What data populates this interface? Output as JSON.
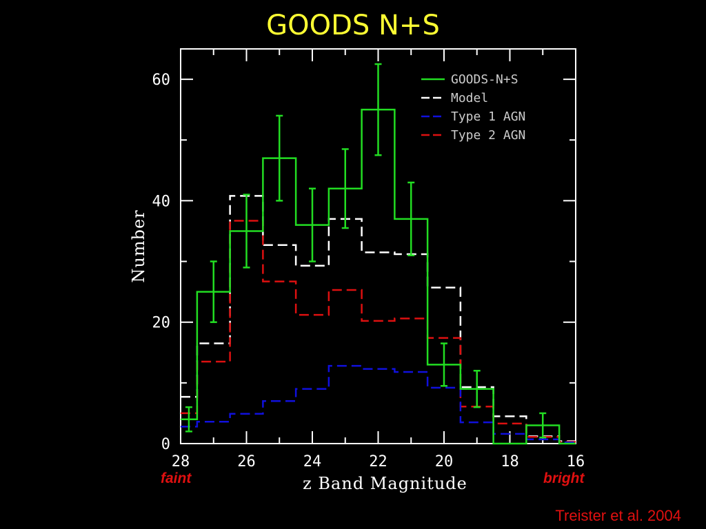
{
  "title": "GOODS N+S",
  "annotations": {
    "faint": "faint",
    "bright": "bright",
    "credit": "Treister et al. 2004"
  },
  "chart_data": {
    "type": "line",
    "xlabel": "z Band Magnitude",
    "ylabel": "Number",
    "xlim": [
      28,
      16
    ],
    "ylim": [
      0,
      65
    ],
    "xticks": [
      28,
      26,
      24,
      22,
      20,
      18,
      16
    ],
    "yticks": [
      0,
      20,
      40,
      60
    ],
    "grid": false,
    "legend_position": "top-right",
    "bin_edges": [
      28,
      27.5,
      26.5,
      25.5,
      24.5,
      23.5,
      22.5,
      21.5,
      20.5,
      19.5,
      18.5,
      17.5,
      16.5,
      16
    ],
    "series": [
      {
        "name": "GOODS-N+S",
        "color": "#22dd22",
        "dash": "",
        "values": [
          4,
          25,
          35,
          47,
          36,
          42,
          55,
          37,
          13,
          9,
          0,
          3,
          0
        ],
        "errors": [
          [
            2,
            6
          ],
          [
            20,
            30
          ],
          [
            29,
            41
          ],
          [
            40,
            54
          ],
          [
            30,
            42
          ],
          [
            35.5,
            48.5
          ],
          [
            47.5,
            62.5
          ],
          [
            31,
            43
          ],
          [
            9.5,
            16.5
          ],
          [
            6,
            12
          ],
          null,
          [
            1,
            5
          ],
          null
        ]
      },
      {
        "name": "Model",
        "color": "#ffffff",
        "dash": "14,7",
        "values": [
          7.7,
          16.5,
          40.8,
          32.7,
          29.3,
          37,
          31.5,
          31.2,
          25.7,
          9.3,
          4.5,
          1.2,
          0.4
        ]
      },
      {
        "name": "Type 1 AGN",
        "color": "#1010dd",
        "dash": "14,7",
        "values": [
          2.8,
          3.6,
          4.9,
          7,
          9,
          12.8,
          12.3,
          11.8,
          9.2,
          3.5,
          1.6,
          0.7,
          0.2
        ]
      },
      {
        "name": "Type 2 AGN",
        "color": "#dd1010",
        "dash": "14,7",
        "values": [
          5,
          13.5,
          36.7,
          26.7,
          21.2,
          25.3,
          20.2,
          20.6,
          17.4,
          6.1,
          3.3,
          1.1,
          0.3
        ]
      }
    ]
  }
}
